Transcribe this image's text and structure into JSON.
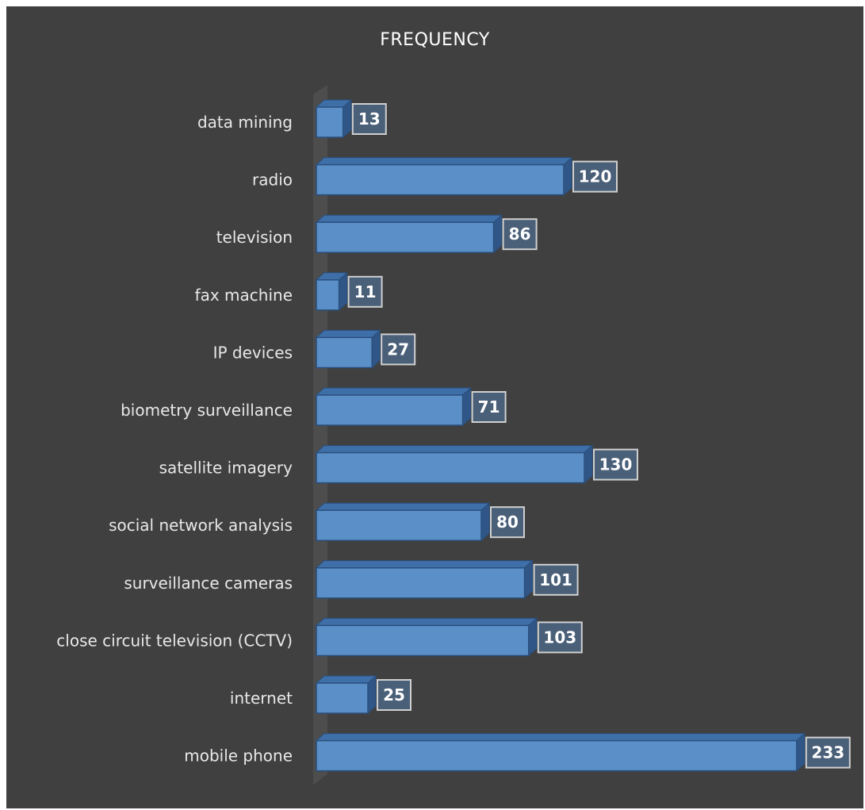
{
  "chart_data": {
    "type": "bar",
    "orientation": "horizontal",
    "style": "3d",
    "title": "FREQUENCY",
    "categories": [
      "data mining",
      "radio",
      "television",
      "fax machine",
      "IP devices",
      "biometry surveillance",
      "satellite imagery",
      "social network analysis",
      "surveillance cameras",
      "close circuit television (CCTV)",
      "internet",
      "mobile phone"
    ],
    "values": [
      13,
      120,
      86,
      11,
      27,
      71,
      130,
      80,
      101,
      103,
      25,
      233
    ],
    "xlim": [
      0,
      233
    ],
    "grid": false,
    "legend": "none",
    "colors": {
      "background": "#404040",
      "bar_front": "#5b8fc7",
      "bar_top": "#3f6fa8",
      "bar_side": "#2f5687",
      "bar_stroke": "#2a4f7c",
      "label_box": "#4a5f78",
      "label_box_stroke": "#d0d0d0",
      "axis_wall": "#4d4d4d"
    }
  }
}
